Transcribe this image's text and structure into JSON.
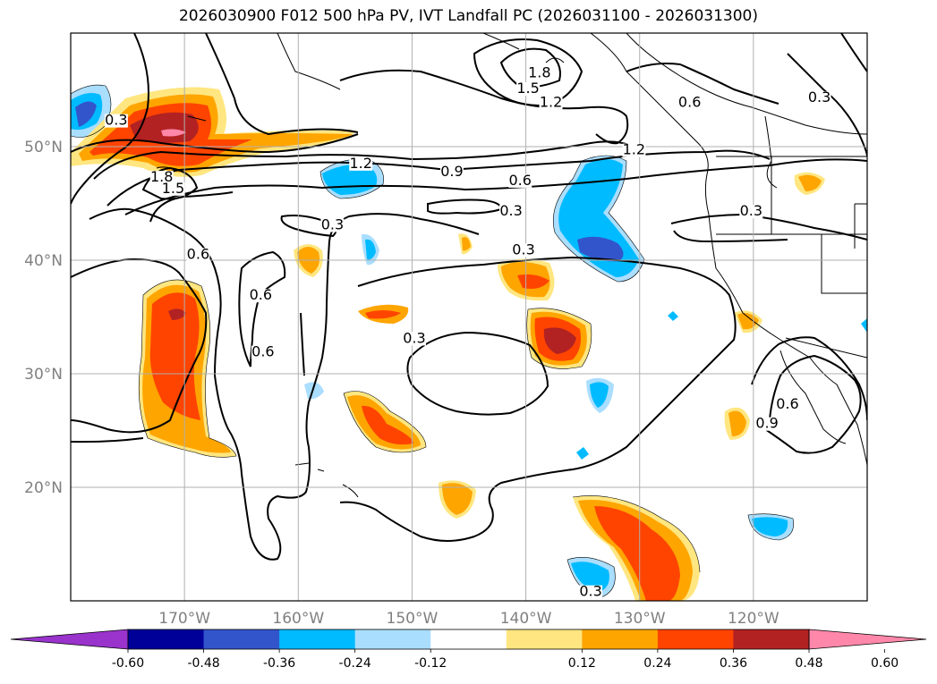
{
  "title": "2026030900 F012 500 hPa PV, IVT Landfall PC (2026031100 - 2026031300)",
  "map": {
    "lon_range": [
      -180,
      -110
    ],
    "lat_range": [
      10,
      60
    ],
    "lon_ticks": [
      {
        "value": -170,
        "label": "170°W"
      },
      {
        "value": -160,
        "label": "160°W"
      },
      {
        "value": -150,
        "label": "150°W"
      },
      {
        "value": -140,
        "label": "140°W"
      },
      {
        "value": -130,
        "label": "130°W"
      },
      {
        "value": -120,
        "label": "120°W"
      }
    ],
    "lat_ticks": [
      {
        "value": 20,
        "label": "20°N"
      },
      {
        "value": 30,
        "label": "30°N"
      },
      {
        "value": 40,
        "label": "40°N"
      },
      {
        "value": 50,
        "label": "50°N"
      }
    ],
    "grid": true
  },
  "contour_labels": [
    {
      "text": "0.3",
      "lon": -176,
      "lat": 52
    },
    {
      "text": "1.8",
      "lon": -172,
      "lat": 47
    },
    {
      "text": "1.5",
      "lon": -171,
      "lat": 46
    },
    {
      "text": "1.8",
      "lon": -138.8,
      "lat": 56.2
    },
    {
      "text": "1.5",
      "lon": -139.8,
      "lat": 54.8
    },
    {
      "text": "1.2",
      "lon": -137.8,
      "lat": 53.6
    },
    {
      "text": "0.6",
      "lon": -125.6,
      "lat": 53.6
    },
    {
      "text": "0.3",
      "lon": -114.2,
      "lat": 54
    },
    {
      "text": "1.2",
      "lon": -130.5,
      "lat": 49.4
    },
    {
      "text": "1.2",
      "lon": -154.5,
      "lat": 48.2
    },
    {
      "text": "0.9",
      "lon": -146.5,
      "lat": 47.5
    },
    {
      "text": "0.6",
      "lon": -140.5,
      "lat": 46.7
    },
    {
      "text": "0.3",
      "lon": -141.3,
      "lat": 44
    },
    {
      "text": "0.3",
      "lon": -157,
      "lat": 42.8
    },
    {
      "text": "0.3",
      "lon": -120.2,
      "lat": 44
    },
    {
      "text": "0.3",
      "lon": -140.2,
      "lat": 40.6
    },
    {
      "text": "0.6",
      "lon": -168.8,
      "lat": 40.2
    },
    {
      "text": "0.6",
      "lon": -163.3,
      "lat": 36.6
    },
    {
      "text": "0.6",
      "lon": -163.1,
      "lat": 31.6
    },
    {
      "text": "0.3",
      "lon": -149.8,
      "lat": 32.8
    },
    {
      "text": "0.9",
      "lon": -118.8,
      "lat": 25.3
    },
    {
      "text": "0.6",
      "lon": -117,
      "lat": 27
    },
    {
      "text": "0.3",
      "lon": -134.3,
      "lat": 10.5
    }
  ],
  "colorbar": {
    "ticks": [
      "-0.60",
      "-0.48",
      "-0.36",
      "-0.24",
      "-0.12",
      "0.12",
      "0.24",
      "0.36",
      "0.48",
      "0.60"
    ],
    "colors": [
      "#9933cc",
      "#000099",
      "#3355cc",
      "#00bbff",
      "#aadeff",
      "#ffffff",
      "#ffe680",
      "#ffa500",
      "#ff4400",
      "#b22222",
      "#ff88aa"
    ],
    "extend": "both"
  },
  "colors": {
    "strong_neg": "#3355cc",
    "mid_neg": "#00bbff",
    "weak_neg": "#aadeff",
    "weak_pos": "#ffe680",
    "mid_pos": "#ffa500",
    "strong_pos": "#ff4400",
    "very_pos": "#b22222",
    "max_pos": "#ff88aa"
  }
}
